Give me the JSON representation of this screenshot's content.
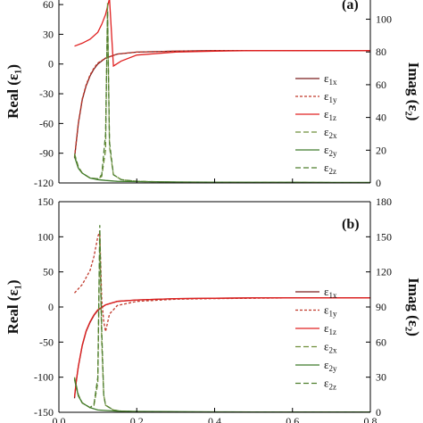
{
  "chart_data": [
    {
      "type": "line",
      "panel_label": "(a)",
      "ylabel": "Real (ε₁)",
      "ylabel2": "Imag (ε₂)",
      "ylim": [
        -120,
        70
      ],
      "ylim2": [
        0,
        115
      ],
      "yticks": [
        -120,
        -90,
        -60,
        -30,
        0,
        30,
        60
      ],
      "yticks2": [
        0,
        20,
        40,
        60,
        80,
        100
      ],
      "xlim": [
        0,
        0.8
      ],
      "legend_position": "right",
      "series": [
        {
          "name": "ε1x",
          "axis": "left",
          "color": "#7a1e1e",
          "dash": "solid",
          "x": [
            0.04,
            0.045,
            0.05,
            0.06,
            0.07,
            0.08,
            0.09,
            0.1,
            0.12,
            0.15,
            0.2,
            0.3,
            0.4,
            0.5,
            0.6,
            0.7,
            0.8
          ],
          "y": [
            -95,
            -78,
            -60,
            -36,
            -22,
            -12,
            -5,
            0,
            6,
            10,
            12,
            13,
            13.5,
            13.5,
            13.5,
            13.5,
            13.5
          ]
        },
        {
          "name": "ε1y",
          "axis": "left",
          "color": "#c0392b",
          "dash": "3,2",
          "x": [
            0.04,
            0.045,
            0.05,
            0.06,
            0.07,
            0.08,
            0.09,
            0.1,
            0.12,
            0.15,
            0.2,
            0.3,
            0.4,
            0.5,
            0.6,
            0.7,
            0.8
          ],
          "y": [
            -94,
            -77,
            -59,
            -35,
            -21,
            -11,
            -4,
            1,
            6,
            10,
            12,
            13,
            13.5,
            13.5,
            13.5,
            13.5,
            13.5
          ]
        },
        {
          "name": "ε1z",
          "axis": "left",
          "color": "#e02020",
          "dash": "solid",
          "x": [
            0.04,
            0.06,
            0.08,
            0.1,
            0.11,
            0.12,
            0.125,
            0.13,
            0.14,
            0.16,
            0.2,
            0.3,
            0.4,
            0.5,
            0.6,
            0.7,
            0.8
          ],
          "y": [
            18,
            21,
            25,
            32,
            40,
            50,
            58,
            66,
            -2,
            3,
            9,
            12,
            13,
            13.5,
            13.5,
            13.5,
            13.5
          ]
        },
        {
          "name": "ε2x",
          "axis": "right",
          "color": "#6f8f3a",
          "dash": "6,3",
          "x": [
            0.04,
            0.05,
            0.06,
            0.08,
            0.1,
            0.11,
            0.12,
            0.125,
            0.13,
            0.14,
            0.16,
            0.2,
            0.3,
            0.4,
            0.5,
            0.6,
            0.7,
            0.8
          ],
          "y": [
            18,
            10,
            6,
            3,
            2.5,
            4,
            20,
            110,
            22,
            5,
            2,
            1,
            0.5,
            0.4,
            0.3,
            0.3,
            0.2,
            0.2
          ]
        },
        {
          "name": "ε2y",
          "axis": "right",
          "color": "#3d7a2a",
          "dash": "solid",
          "x": [
            0.04,
            0.05,
            0.06,
            0.08,
            0.1,
            0.12,
            0.15,
            0.2,
            0.3,
            0.4,
            0.5,
            0.6,
            0.7,
            0.8
          ],
          "y": [
            16,
            9,
            6,
            3,
            2,
            1.5,
            1,
            0.8,
            0.6,
            0.5,
            0.4,
            0.4,
            0.3,
            0.3
          ]
        },
        {
          "name": "ε2z",
          "axis": "right",
          "color": "#4f7f2f",
          "dash": "6,3",
          "x": [
            0.04,
            0.05,
            0.06,
            0.08,
            0.1,
            0.11,
            0.12,
            0.125,
            0.13,
            0.14,
            0.16,
            0.2,
            0.3,
            0.4,
            0.5,
            0.6,
            0.7,
            0.8
          ],
          "y": [
            17,
            9,
            6,
            3,
            2.5,
            5,
            30,
            105,
            25,
            5,
            2,
            1,
            0.5,
            0.4,
            0.3,
            0.3,
            0.2,
            0.2
          ]
        }
      ]
    },
    {
      "type": "line",
      "panel_label": "(b)",
      "ylabel": "Real (ε₁)",
      "ylabel2": "Imag (ε₂)",
      "ylim": [
        -150,
        150
      ],
      "ylim2": [
        0,
        180
      ],
      "yticks": [
        -150,
        -100,
        -50,
        0,
        50,
        100,
        150
      ],
      "yticks2": [
        0,
        30,
        60,
        90,
        120,
        150,
        180
      ],
      "xlim": [
        0,
        0.8
      ],
      "xticks": [
        0.0,
        0.2,
        0.4,
        0.6,
        0.8
      ],
      "legend_position": "right",
      "series": [
        {
          "name": "ε1x",
          "axis": "left",
          "color": "#7a1e1e",
          "dash": "solid",
          "x": [
            0.04,
            0.045,
            0.05,
            0.06,
            0.07,
            0.08,
            0.09,
            0.1,
            0.12,
            0.15,
            0.2,
            0.3,
            0.4,
            0.5,
            0.6,
            0.7,
            0.8
          ],
          "y": [
            -130,
            -105,
            -85,
            -55,
            -35,
            -22,
            -12,
            -5,
            3,
            8,
            10,
            12,
            12.5,
            13,
            13,
            13,
            13
          ]
        },
        {
          "name": "ε1y",
          "axis": "left",
          "color": "#c0392b",
          "dash": "3,2",
          "x": [
            0.04,
            0.06,
            0.08,
            0.09,
            0.1,
            0.105,
            0.11,
            0.115,
            0.12,
            0.13,
            0.15,
            0.2,
            0.3,
            0.4,
            0.5,
            0.6,
            0.7,
            0.8
          ],
          "y": [
            20,
            32,
            52,
            72,
            100,
            108,
            10,
            -20,
            -35,
            -10,
            2,
            8,
            11,
            12,
            12.5,
            13,
            13,
            13
          ]
        },
        {
          "name": "ε1z",
          "axis": "left",
          "color": "#e02020",
          "dash": "solid",
          "x": [
            0.04,
            0.045,
            0.05,
            0.06,
            0.07,
            0.08,
            0.09,
            0.1,
            0.12,
            0.15,
            0.2,
            0.3,
            0.4,
            0.5,
            0.6,
            0.7,
            0.8
          ],
          "y": [
            -128,
            -104,
            -84,
            -54,
            -34,
            -21,
            -11,
            -4,
            3,
            8,
            10,
            12,
            12.5,
            13,
            13,
            13,
            13
          ]
        },
        {
          "name": "ε2x",
          "axis": "right",
          "color": "#6f8f3a",
          "dash": "6,3",
          "x": [
            0.04,
            0.05,
            0.06,
            0.08,
            0.09,
            0.1,
            0.105,
            0.11,
            0.115,
            0.12,
            0.14,
            0.16,
            0.2,
            0.3,
            0.4,
            0.5,
            0.6,
            0.7,
            0.8
          ],
          "y": [
            30,
            15,
            8,
            4,
            6,
            25,
            150,
            60,
            15,
            6,
            2,
            1,
            0.5,
            0.3,
            0.3,
            0.2,
            0.2,
            0.2,
            0.2
          ]
        },
        {
          "name": "ε2y",
          "axis": "right",
          "color": "#3d7a2a",
          "dash": "solid",
          "x": [
            0.04,
            0.05,
            0.06,
            0.08,
            0.1,
            0.12,
            0.15,
            0.2,
            0.3,
            0.4,
            0.5,
            0.6,
            0.7,
            0.8
          ],
          "y": [
            28,
            14,
            8,
            4,
            2,
            1.5,
            1,
            0.8,
            0.5,
            0.4,
            0.3,
            0.3,
            0.2,
            0.2
          ]
        },
        {
          "name": "ε2z",
          "axis": "right",
          "color": "#4f7f2f",
          "dash": "6,3",
          "x": [
            0.04,
            0.05,
            0.06,
            0.08,
            0.09,
            0.1,
            0.105,
            0.11,
            0.115,
            0.12,
            0.14,
            0.16,
            0.2,
            0.3,
            0.4,
            0.5,
            0.6,
            0.7,
            0.8
          ],
          "y": [
            29,
            14,
            8,
            4,
            7,
            30,
            160,
            70,
            15,
            6,
            2,
            1,
            0.5,
            0.3,
            0.3,
            0.2,
            0.2,
            0.2,
            0.2
          ]
        }
      ]
    }
  ]
}
